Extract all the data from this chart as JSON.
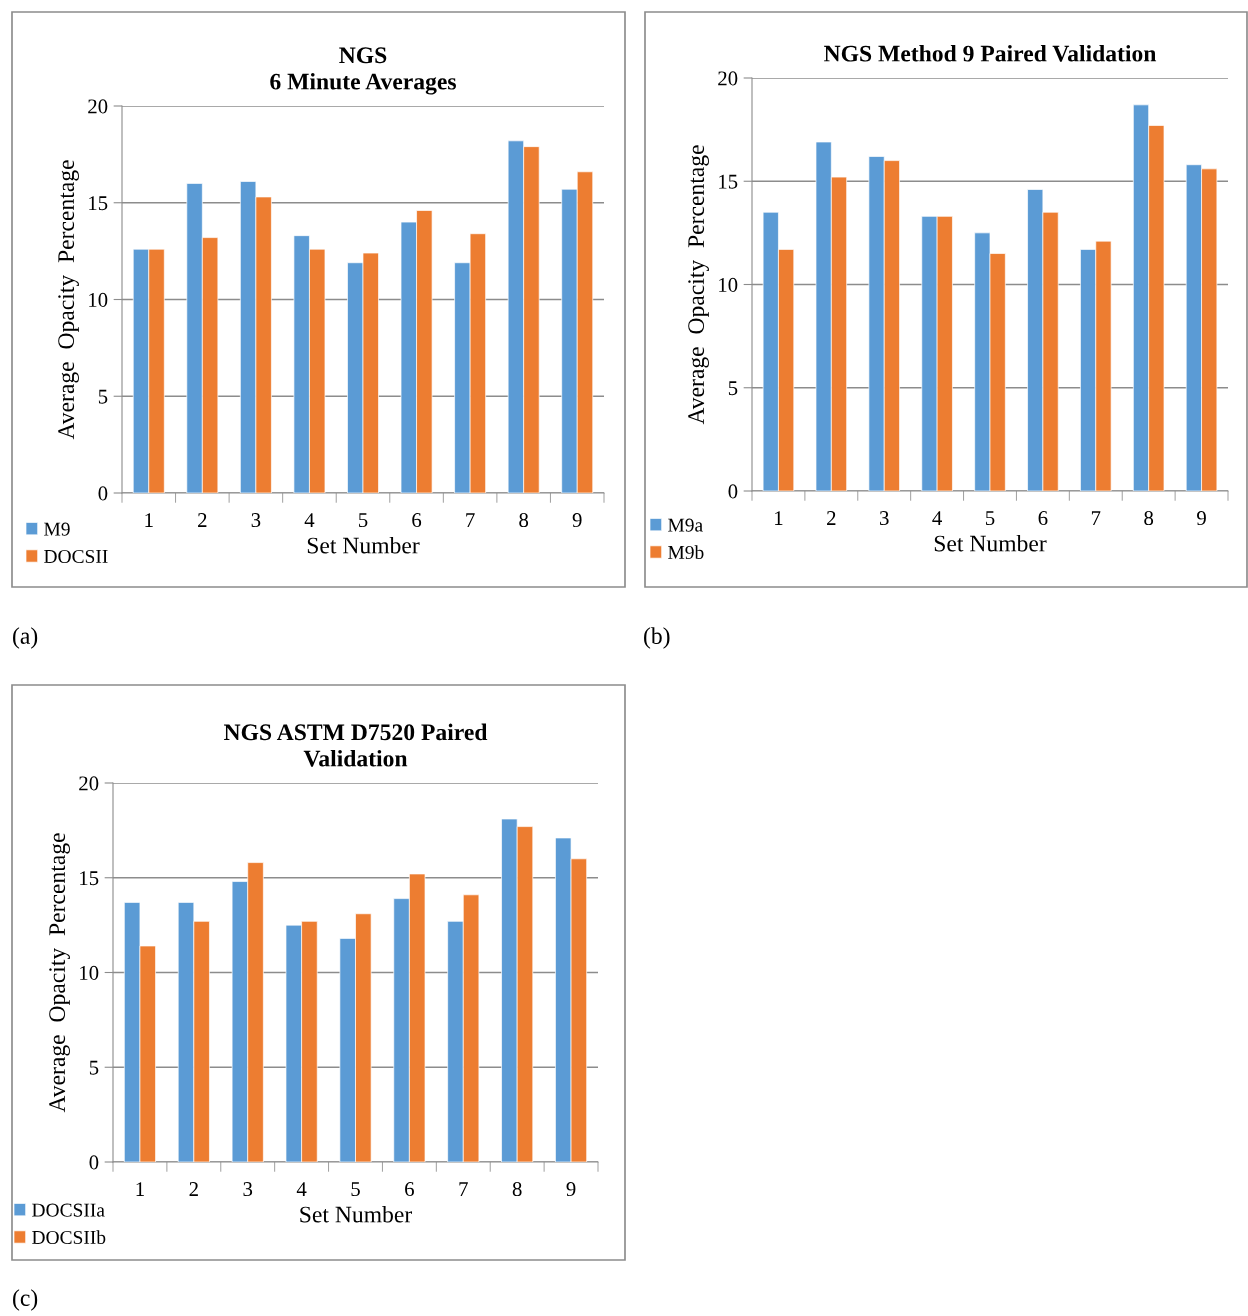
{
  "chart_data": [
    {
      "type": "bar",
      "title": "NGS\n6 Minute Averages",
      "xlabel": "Set Number",
      "ylabel": "Average  Opacity  Percentage",
      "categories": [
        "1",
        "2",
        "3",
        "4",
        "5",
        "6",
        "7",
        "8",
        "9"
      ],
      "series": [
        {
          "name": "M9",
          "color": "#5b9bd5",
          "values": [
            12.6,
            16.0,
            16.1,
            13.3,
            11.9,
            14.0,
            11.9,
            18.2,
            15.7
          ]
        },
        {
          "name": "DOCSII",
          "color": "#ed7d31",
          "values": [
            12.6,
            13.2,
            15.3,
            12.6,
            12.4,
            14.6,
            13.4,
            17.9,
            16.6
          ]
        }
      ],
      "ylim": [
        0,
        20
      ],
      "yticks": [
        0,
        5,
        10,
        15,
        20
      ],
      "grid": "y",
      "legend": "bottom left",
      "annotations": [
        "(a)"
      ]
    },
    {
      "type": "bar",
      "title": "NGS Method 9 Paired Validation",
      "xlabel": "Set Number",
      "ylabel": "Average  Opacity  Percentage",
      "categories": [
        "1",
        "2",
        "3",
        "4",
        "5",
        "6",
        "7",
        "8",
        "9"
      ],
      "series": [
        {
          "name": "M9a",
          "color": "#5b9bd5",
          "values": [
            13.5,
            16.9,
            16.2,
            13.3,
            12.5,
            14.6,
            11.7,
            18.7,
            15.8
          ]
        },
        {
          "name": "M9b",
          "color": "#ed7d31",
          "values": [
            11.7,
            15.2,
            16.0,
            13.3,
            11.5,
            13.5,
            12.1,
            17.7,
            15.6
          ]
        }
      ],
      "ylim": [
        0,
        20
      ],
      "yticks": [
        0,
        5,
        10,
        15,
        20
      ],
      "grid": "y",
      "legend": "bottom left",
      "annotations": [
        "(b)"
      ]
    },
    {
      "type": "bar",
      "title": "NGS ASTM D7520 Paired\nValidation",
      "xlabel": "Set Number",
      "ylabel": "Average  Opacity  Percentage",
      "categories": [
        "1",
        "2",
        "3",
        "4",
        "5",
        "6",
        "7",
        "8",
        "9"
      ],
      "series": [
        {
          "name": "DOCSIIa",
          "color": "#5b9bd5",
          "values": [
            13.7,
            13.7,
            14.8,
            12.5,
            11.8,
            13.9,
            12.7,
            18.1,
            17.1
          ]
        },
        {
          "name": "DOCSIIb",
          "color": "#ed7d31",
          "values": [
            11.4,
            12.7,
            15.8,
            12.7,
            13.1,
            15.2,
            14.1,
            17.7,
            16.0
          ]
        }
      ],
      "ylim": [
        0,
        20
      ],
      "yticks": [
        0,
        5,
        10,
        15,
        20
      ],
      "grid": "y",
      "legend": "bottom left",
      "annotations": [
        "(c)"
      ]
    }
  ]
}
